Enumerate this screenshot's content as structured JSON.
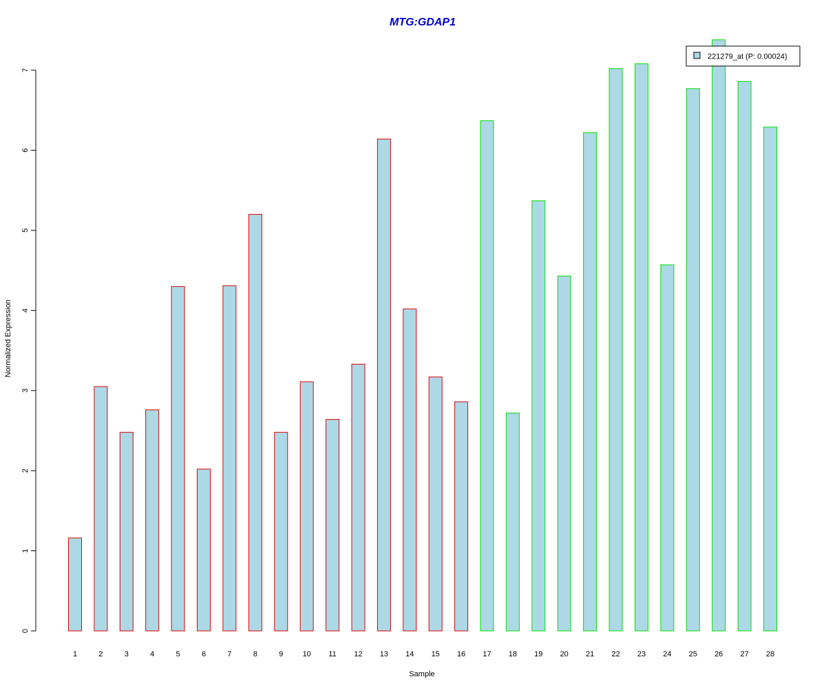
{
  "chart_data": {
    "type": "bar",
    "title": "MTG:GDAP1",
    "xlabel": "Sample",
    "ylabel": "Normalized Expression",
    "categories": [
      "1",
      "2",
      "3",
      "4",
      "5",
      "6",
      "7",
      "8",
      "9",
      "10",
      "11",
      "12",
      "13",
      "14",
      "15",
      "16",
      "17",
      "18",
      "19",
      "20",
      "21",
      "22",
      "23",
      "24",
      "25",
      "26",
      "27",
      "28"
    ],
    "series": [
      {
        "name": "221279_at (P: 0.00024)",
        "values": [
          1.16,
          3.05,
          2.48,
          2.76,
          4.3,
          2.02,
          4.31,
          5.2,
          2.48,
          3.11,
          2.64,
          3.33,
          6.14,
          4.02,
          3.17,
          2.86,
          6.37,
          2.72,
          5.37,
          4.43,
          6.22,
          7.02,
          7.08,
          4.57,
          6.77,
          7.38,
          6.86,
          6.29
        ]
      }
    ],
    "groups": [
      {
        "samples": [
          1,
          16
        ],
        "border_color": "#e00000"
      },
      {
        "samples": [
          17,
          28
        ],
        "border_color": "#00e000"
      }
    ],
    "ylim": [
      0,
      7
    ],
    "yticks": [
      0,
      1,
      2,
      3,
      4,
      5,
      6,
      7
    ],
    "grid": false,
    "legend_position": "top-right",
    "colors": {
      "bar_fill": "#add8e6",
      "title": "#0000cc",
      "axis": "#000000"
    }
  }
}
